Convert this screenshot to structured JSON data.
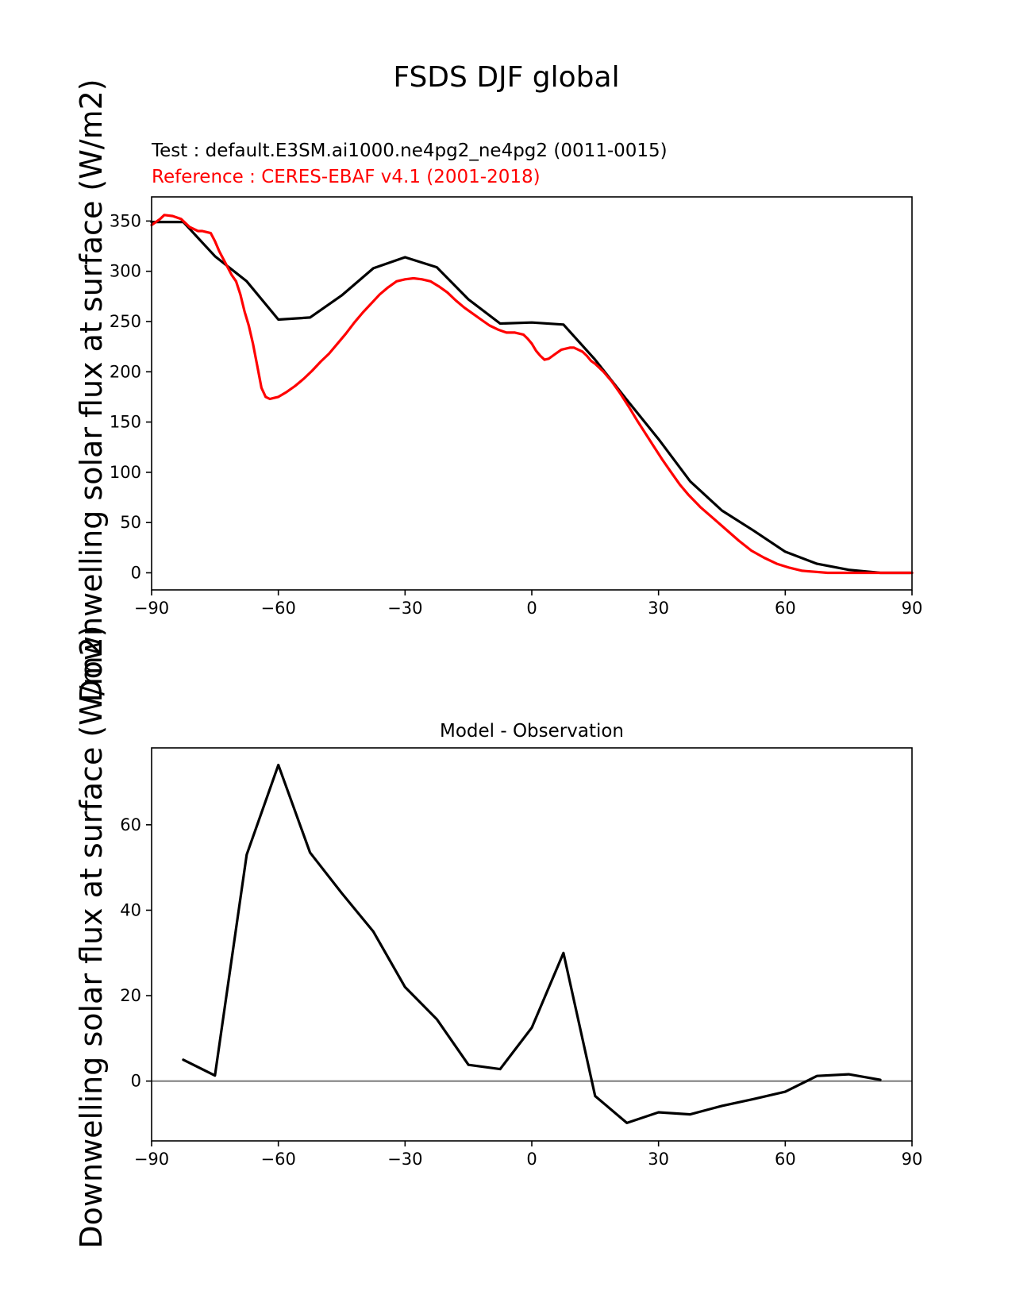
{
  "figure": {
    "title": "FSDS DJF global"
  },
  "chart_data": [
    {
      "type": "line",
      "subtitle_test": "Test : default.E3SM.ai1000.ne4pg2_ne4pg2 (0011-0015)",
      "subtitle_ref": "Reference : CERES-EBAF v4.1 (2001-2018)",
      "xlabel": "",
      "ylabel": "Downwelling solar flux at surface (W/m2)",
      "xlim": [
        -90,
        90
      ],
      "ylim": [
        -17,
        374
      ],
      "x_ticks": [
        -90,
        -60,
        -30,
        0,
        30,
        60,
        90
      ],
      "x_tick_labels": [
        "−90",
        "−60",
        "−30",
        "0",
        "30",
        "60",
        "90"
      ],
      "y_ticks": [
        0,
        50,
        100,
        150,
        200,
        250,
        300,
        350
      ],
      "y_tick_labels": [
        "0",
        "50",
        "100",
        "150",
        "200",
        "250",
        "300",
        "350"
      ],
      "grid": false,
      "series": [
        {
          "color": "#000000",
          "x": [
            -90,
            -82.5,
            -75,
            -67.5,
            -60,
            -52.5,
            -45,
            -37.5,
            -30,
            -22.5,
            -15,
            -7.5,
            0,
            7.5,
            15,
            22.5,
            30,
            37.5,
            45,
            52.5,
            60,
            67.5,
            75,
            82.5,
            90
          ],
          "y": [
            349,
            349,
            315,
            290,
            252,
            254,
            276,
            303,
            314,
            304,
            272,
            248,
            249,
            247,
            212,
            172,
            133,
            91,
            62,
            42,
            21,
            9,
            3,
            0,
            0
          ]
        },
        {
          "color": "#ff0000",
          "x": [
            -90,
            -88,
            -87,
            -85,
            -83,
            -82,
            -81,
            -80,
            -79,
            -78,
            -77,
            -76,
            -75,
            -74,
            -73,
            -72,
            -71,
            -70,
            -69,
            -68,
            -67,
            -66,
            -65,
            -64,
            -63,
            -62,
            -61,
            -60,
            -58,
            -56,
            -54,
            -52,
            -50,
            -48,
            -46,
            -44,
            -42,
            -40,
            -38,
            -36,
            -34,
            -32,
            -30,
            -28,
            -26,
            -24,
            -22,
            -20,
            -18,
            -16,
            -14,
            -12,
            -10,
            -8,
            -6,
            -4,
            -2,
            -1,
            0,
            1,
            2,
            3,
            4,
            5,
            6,
            7,
            8,
            9,
            10,
            11,
            12,
            13,
            14,
            15,
            17,
            19,
            21,
            23,
            25,
            27,
            29,
            31,
            33,
            35,
            37,
            40,
            43,
            46,
            49,
            52,
            55,
            58,
            61,
            64,
            67,
            70,
            73,
            76,
            80,
            85,
            90
          ],
          "y": [
            346,
            352,
            356,
            355,
            352,
            348,
            344,
            342,
            340,
            340,
            339,
            338,
            330,
            320,
            312,
            304,
            296,
            290,
            277,
            260,
            246,
            228,
            206,
            184,
            175,
            173,
            174,
            175,
            180,
            186,
            193,
            201,
            210,
            218,
            228,
            238,
            249,
            259,
            268,
            277,
            284,
            290,
            292,
            293,
            292,
            290,
            285,
            279,
            271,
            264,
            258,
            252,
            246,
            242,
            239,
            239,
            237,
            233,
            228,
            221,
            216,
            212,
            213,
            216,
            219,
            222,
            223,
            224,
            224,
            222,
            220,
            216,
            211,
            208,
            200,
            190,
            178,
            165,
            151,
            138,
            125,
            112,
            100,
            88,
            78,
            65,
            54,
            43,
            32,
            22,
            15,
            9,
            5,
            2,
            1,
            0,
            0,
            0,
            0,
            0,
            0
          ]
        }
      ]
    },
    {
      "type": "line",
      "title": "Model - Observation",
      "xlabel": "",
      "ylabel": "Downwelling solar flux at surface (W/m2)",
      "xlim": [
        -90,
        90
      ],
      "ylim": [
        -14,
        78
      ],
      "x_ticks": [
        -90,
        -60,
        -30,
        0,
        30,
        60,
        90
      ],
      "x_tick_labels": [
        "−90",
        "−60",
        "−30",
        "0",
        "30",
        "60",
        "90"
      ],
      "y_ticks": [
        0,
        20,
        40,
        60
      ],
      "y_tick_labels": [
        "0",
        "20",
        "40",
        "60"
      ],
      "grid": false,
      "zero_line_color": "#808080",
      "series": [
        {
          "color": "#000000",
          "x": [
            -82.5,
            -75,
            -67.5,
            -60,
            -52.5,
            -45,
            -37.5,
            -30,
            -22.5,
            -15,
            -7.5,
            0,
            7.5,
            15,
            22.5,
            30,
            37.5,
            45,
            52.5,
            60,
            67.5,
            75,
            82.5
          ],
          "y": [
            5,
            1.3,
            53,
            74,
            53.5,
            44,
            35,
            22,
            14.5,
            3.8,
            2.8,
            12.5,
            30,
            -3.5,
            -9.8,
            -7.3,
            -7.8,
            -5.8,
            -4.2,
            -2.5,
            1.2,
            1.6,
            0.3
          ]
        }
      ]
    }
  ]
}
